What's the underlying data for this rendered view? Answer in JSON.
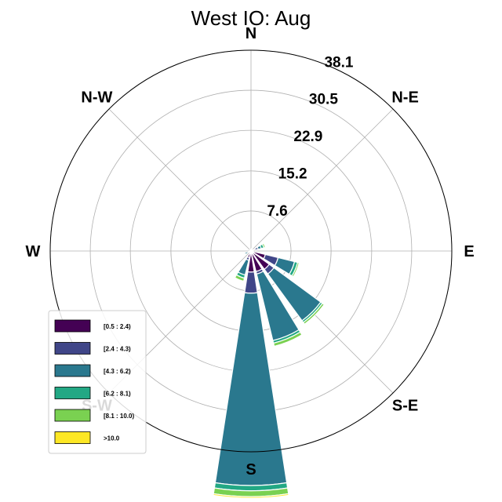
{
  "chart_data": {
    "type": "windrose",
    "title": "West IO: Aug",
    "directions": [
      "N",
      "NNE",
      "NE",
      "ENE",
      "E",
      "ESE",
      "SE",
      "SSE",
      "S",
      "SSW",
      "SW",
      "WSW",
      "W",
      "WNW",
      "NW",
      "NNW"
    ],
    "direction_labels": [
      "N",
      "N-E",
      "E",
      "S-E",
      "S",
      "S-W",
      "W",
      "N-W"
    ],
    "radial_ticks": [
      7.6,
      15.2,
      22.9,
      30.5,
      38.1
    ],
    "rmax": 38.1,
    "legend": {
      "placement": "lower-left",
      "entries": [
        "[0.5 : 2.4)",
        "[2.4 : 4.3)",
        "[4.3 : 6.2)",
        "[6.2 : 8.1)",
        "[8.1 : 10.0)",
        ">10.0"
      ]
    },
    "bin_colors": [
      "#440154",
      "#404688",
      "#2a788e",
      "#22a884",
      "#7ad151",
      "#fde725"
    ],
    "series": [
      {
        "direction": "N",
        "values": [
          0.2,
          0.1,
          0.0,
          0.0,
          0.0,
          0.0
        ]
      },
      {
        "direction": "NNE",
        "values": [
          0.3,
          0.1,
          0.1,
          0.0,
          0.0,
          0.0
        ]
      },
      {
        "direction": "NE",
        "values": [
          0.0,
          0.0,
          0.0,
          0.0,
          0.0,
          0.0
        ]
      },
      {
        "direction": "ENE",
        "values": [
          0.8,
          0.6,
          0.6,
          0.5,
          0.3,
          0.0
        ]
      },
      {
        "direction": "E",
        "values": [
          0.0,
          0.0,
          0.0,
          0.0,
          0.0,
          0.0
        ]
      },
      {
        "direction": "ESE",
        "values": [
          2.8,
          2.5,
          3.2,
          0.6,
          0.3,
          0.0
        ]
      },
      {
        "direction": "SE",
        "values": [
          4.3,
          1.1,
          11.0,
          0.4,
          0.4,
          0.0
        ]
      },
      {
        "direction": "SSE",
        "values": [
          4.0,
          0.5,
          13.0,
          0.5,
          0.6,
          0.0
        ]
      },
      {
        "direction": "S",
        "values": [
          4.0,
          4.0,
          36.5,
          1.0,
          1.1,
          0.3
        ]
      },
      {
        "direction": "SSW",
        "values": [
          1.3,
          0.5,
          2.9,
          0.6,
          0.6,
          0.0
        ]
      },
      {
        "direction": "SW",
        "values": [
          0.0,
          0.0,
          0.0,
          0.0,
          0.0,
          0.0
        ]
      },
      {
        "direction": "WSW",
        "values": [
          0.4,
          0.2,
          0.6,
          0.2,
          0.1,
          0.0
        ]
      },
      {
        "direction": "W",
        "values": [
          0.0,
          0.0,
          0.0,
          0.0,
          0.0,
          0.0
        ]
      },
      {
        "direction": "WNW",
        "values": [
          0.0,
          0.0,
          0.0,
          0.0,
          0.0,
          0.0
        ]
      },
      {
        "direction": "NW",
        "values": [
          0.2,
          0.1,
          0.0,
          0.0,
          0.0,
          0.0
        ]
      },
      {
        "direction": "NNW",
        "values": [
          0.2,
          0.0,
          0.0,
          0.0,
          0.0,
          0.0
        ]
      }
    ]
  }
}
